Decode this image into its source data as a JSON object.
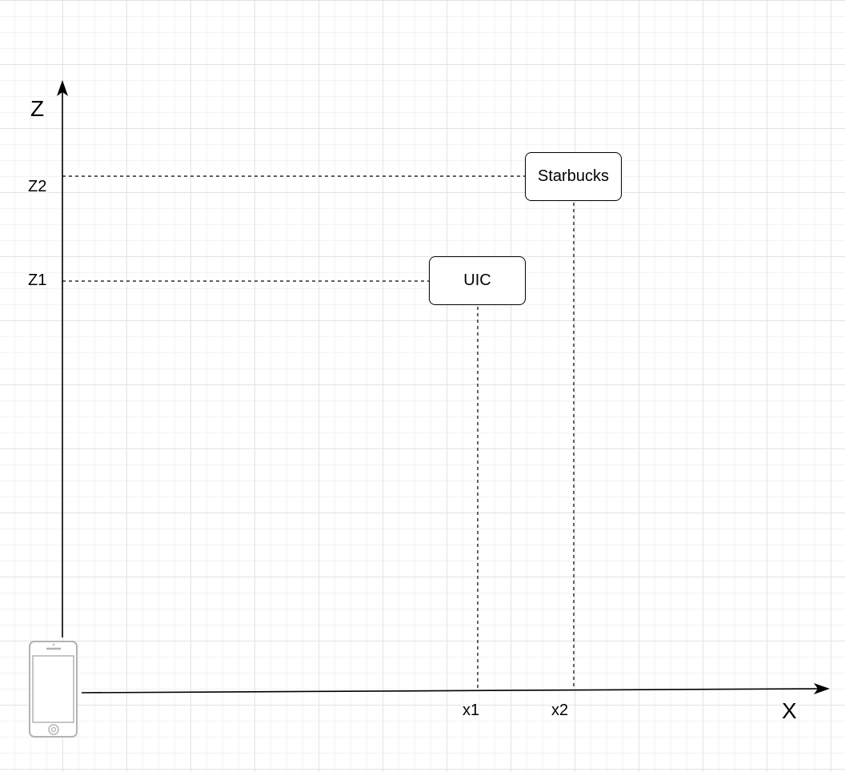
{
  "axes": {
    "vertical_label": "Z",
    "horizontal_label": "X"
  },
  "ticks": {
    "z2": "Z2",
    "z1": "Z1",
    "x1": "x1",
    "x2": "x2"
  },
  "nodes": {
    "starbucks": "Starbucks",
    "uic": "UIC"
  },
  "icons": {
    "device": "smartphone-icon"
  },
  "colors": {
    "line": "#000000",
    "device": "#b3b3b3",
    "grid": "#e3e3e3"
  }
}
